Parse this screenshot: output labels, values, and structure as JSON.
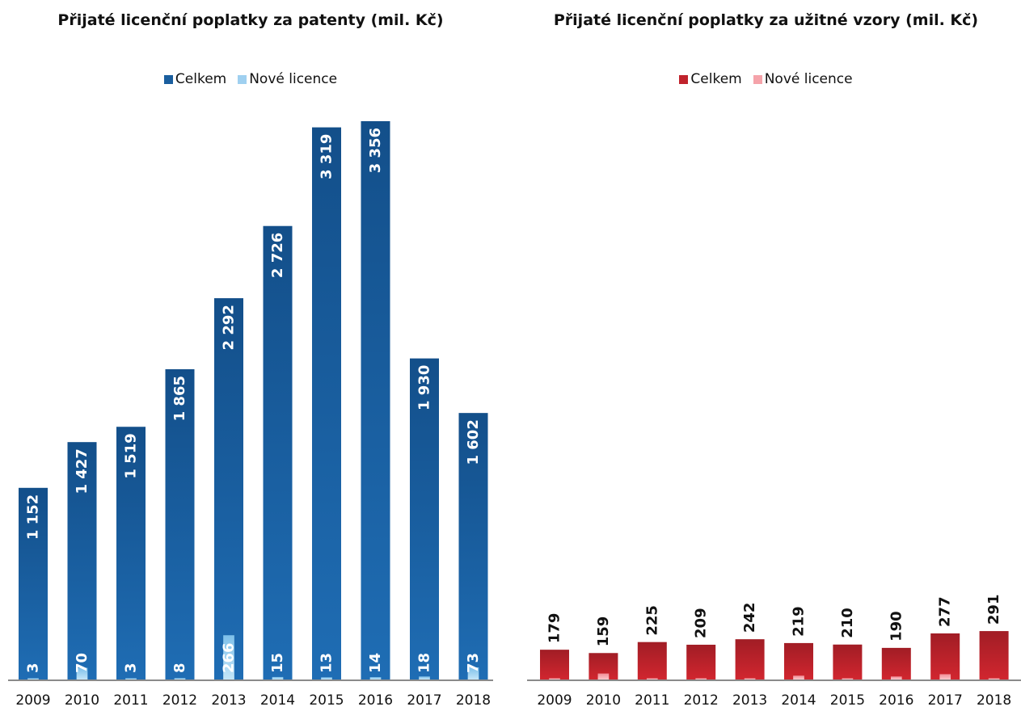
{
  "chart_data": [
    {
      "type": "bar",
      "title": "Přijaté licenční poplatky za patenty (mil. Kč)",
      "categories": [
        "2009",
        "2010",
        "2011",
        "2012",
        "2013",
        "2014",
        "2015",
        "2016",
        "2017",
        "2018"
      ],
      "series": [
        {
          "name": "Celkem",
          "values": [
            1152,
            1427,
            1519,
            1865,
            2292,
            2726,
            3319,
            3356,
            1930,
            1602
          ],
          "labels": [
            "1 152",
            "1 427",
            "1 519",
            "1 865",
            "2 292",
            "2 726",
            "3 319",
            "3 356",
            "1 930",
            "1 602"
          ]
        },
        {
          "name": "Nové licence",
          "values": [
            3,
            70,
            3,
            8,
            266,
            15,
            13,
            14,
            18,
            73
          ],
          "labels": [
            "3",
            "70",
            "3",
            "8",
            "266",
            "15",
            "13",
            "14",
            "18",
            "73"
          ]
        }
      ],
      "colors": {
        "total": "#1a5e9e",
        "new": "#9fd0f0",
        "total_label": "#ffffff",
        "new_label": "#ffffff"
      },
      "legend": "top-center",
      "ylim": [
        0,
        3356
      ],
      "grid": false
    },
    {
      "type": "bar",
      "title": "Přijaté licenční poplatky za užitné vzory (mil. Kč)",
      "categories": [
        "2009",
        "2010",
        "2011",
        "2012",
        "2013",
        "2014",
        "2015",
        "2016",
        "2017",
        "2018"
      ],
      "series": [
        {
          "name": "Celkem",
          "values": [
            179,
            159,
            225,
            209,
            242,
            219,
            210,
            190,
            277,
            291
          ],
          "labels": [
            "179",
            "159",
            "225",
            "209",
            "242",
            "219",
            "210",
            "190",
            "277",
            "291"
          ]
        },
        {
          "name": "Nové licence",
          "values": [
            2,
            36,
            3,
            1,
            4,
            23,
            4,
            18,
            32,
            3
          ],
          "labels": []
        }
      ],
      "colors": {
        "total": "#c0232c",
        "new": "#f5a3aa",
        "total_label": "#111111"
      },
      "legend": "top-center",
      "ylim": [
        0,
        3356
      ],
      "grid": false
    }
  ]
}
